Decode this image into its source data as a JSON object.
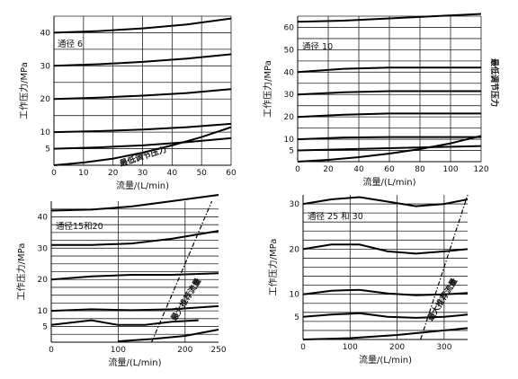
{
  "chart_data": [
    {
      "type": "line",
      "panel_label": "通径 6",
      "xlabel": "流量/(L/min)",
      "ylabel": "工作压力/MPa",
      "xlim": [
        0,
        60
      ],
      "ylim": [
        0,
        45
      ],
      "xticks": [
        0,
        10,
        20,
        30,
        40,
        50,
        60
      ],
      "yticks": [
        5,
        10,
        20,
        30,
        40
      ],
      "grid_x": [
        0,
        10,
        20,
        30,
        40,
        50,
        60
      ],
      "grid_y": [
        5,
        10,
        15,
        20,
        25,
        30,
        35,
        40,
        45
      ],
      "series": [
        {
          "x": [
            0,
            15,
            30,
            45,
            60
          ],
          "y": [
            40,
            40.5,
            41.3,
            42.5,
            44.3
          ]
        },
        {
          "x": [
            0,
            15,
            30,
            45,
            60
          ],
          "y": [
            30,
            30.5,
            31.2,
            32.2,
            33.5
          ]
        },
        {
          "x": [
            0,
            15,
            30,
            45,
            60
          ],
          "y": [
            20,
            20.4,
            21,
            21.8,
            23
          ]
        },
        {
          "x": [
            0,
            15,
            30,
            45,
            60
          ],
          "y": [
            10,
            10.3,
            10.8,
            11.5,
            12.5
          ]
        },
        {
          "x": [
            0,
            15,
            30,
            45,
            60
          ],
          "y": [
            5,
            5.4,
            6,
            7,
            8.2
          ]
        }
      ],
      "limit_line": {
        "name": "最低调节压力",
        "x": [
          0,
          10,
          20,
          30,
          40,
          50,
          60
        ],
        "y": [
          0,
          0.8,
          2,
          3.8,
          6,
          8.5,
          11.5
        ]
      }
    },
    {
      "type": "line",
      "panel_label": "通径 10",
      "xlabel": "流量/(L/min)",
      "ylabel": "工作压力/MPa",
      "xlim": [
        0,
        120
      ],
      "ylim": [
        0,
        65
      ],
      "xticks": [
        0,
        20,
        40,
        60,
        80,
        100,
        120
      ],
      "yticks": [
        5,
        10,
        20,
        30,
        40,
        50,
        60
      ],
      "grid_x": [
        0,
        20,
        40,
        60,
        80,
        100,
        120
      ],
      "grid_y": [
        5,
        10,
        15,
        20,
        25,
        30,
        35,
        40,
        45,
        50,
        55,
        60,
        65
      ],
      "series": [
        {
          "x": [
            0,
            30,
            60,
            90,
            120
          ],
          "y": [
            62.5,
            63,
            64,
            65,
            66
          ]
        },
        {
          "x": [
            0,
            30,
            60,
            90,
            120
          ],
          "y": [
            40,
            41.5,
            42,
            42,
            42
          ]
        },
        {
          "x": [
            0,
            30,
            60,
            90,
            120
          ],
          "y": [
            30,
            31,
            31.5,
            31.5,
            31.5
          ]
        },
        {
          "x": [
            0,
            30,
            60,
            90,
            120
          ],
          "y": [
            20,
            21,
            21.5,
            21.5,
            21.5
          ]
        },
        {
          "x": [
            0,
            30,
            60,
            90,
            120
          ],
          "y": [
            10,
            10.8,
            11,
            11,
            11
          ]
        },
        {
          "x": [
            0,
            30,
            60,
            90,
            120
          ],
          "y": [
            5,
            5.5,
            6,
            6.5,
            7
          ]
        }
      ],
      "limit_line": {
        "name": "最低调节压力",
        "x": [
          0,
          20,
          40,
          60,
          80,
          100,
          120
        ],
        "y": [
          0,
          0.8,
          2,
          3.6,
          5.6,
          8.2,
          11.5
        ]
      }
    },
    {
      "type": "line",
      "panel_label": "通径15和20",
      "xlabel": "流量/(L/min)",
      "ylabel": "工作压力/MPa",
      "xlim": [
        0,
        250
      ],
      "ylim": [
        0,
        45
      ],
      "xticks": [
        0,
        100,
        200,
        250
      ],
      "yticks": [
        5,
        10,
        20,
        30,
        40
      ],
      "grid_x": [
        0,
        100,
        200
      ],
      "grid_y": [
        2.5,
        5,
        7.5,
        10,
        12.5,
        15,
        17.5,
        20,
        22.5,
        25,
        27.5,
        30,
        32.5,
        35,
        37.5,
        40,
        42.5
      ],
      "series": [
        {
          "x": [
            0,
            60,
            120,
            180,
            250
          ],
          "y": [
            42,
            42.3,
            43.3,
            45,
            47
          ]
        },
        {
          "x": [
            0,
            60,
            120,
            180,
            250
          ],
          "y": [
            31,
            31,
            31.5,
            33,
            35.5
          ]
        },
        {
          "x": [
            0,
            60,
            120,
            180,
            250
          ],
          "y": [
            20,
            21,
            21.5,
            21.5,
            22
          ]
        },
        {
          "x": [
            0,
            60,
            120,
            180,
            250
          ],
          "y": [
            10,
            10.5,
            10.2,
            10.5,
            11.5
          ]
        },
        {
          "x": [
            0,
            60,
            100,
            140,
            180,
            220
          ],
          "y": [
            5.5,
            7,
            5.5,
            5.5,
            6.5,
            7
          ]
        }
      ],
      "limit_line": {
        "x": [
          100,
          150,
          200,
          250
        ],
        "y": [
          0.3,
          1,
          2,
          4
        ]
      },
      "boundary": {
        "name": "最大推荐流量",
        "x": [
          150,
          240
        ],
        "y": [
          0,
          45
        ]
      }
    },
    {
      "type": "line",
      "panel_label": "通径 25 和 30",
      "xlabel": "流量/(L/min)",
      "ylabel": "工作压力/MPa",
      "xlim": [
        0,
        350
      ],
      "ylim": [
        0,
        32
      ],
      "xticks": [
        0,
        100,
        200,
        300
      ],
      "yticks": [
        5,
        10,
        20,
        30
      ],
      "grid_x": [
        0,
        100,
        200,
        300
      ],
      "grid_y": [
        2,
        4,
        6,
        8,
        10,
        12,
        14,
        16,
        18,
        20,
        22,
        24,
        26,
        28,
        30
      ],
      "series": [
        {
          "x": [
            0,
            60,
            120,
            180,
            240,
            300,
            350
          ],
          "y": [
            30,
            31,
            31.5,
            30.5,
            29.5,
            30,
            31
          ]
        },
        {
          "x": [
            0,
            60,
            120,
            180,
            240,
            300,
            350
          ],
          "y": [
            20,
            21,
            21,
            19.5,
            19,
            19.5,
            20
          ]
        },
        {
          "x": [
            0,
            60,
            120,
            180,
            240,
            300,
            350
          ],
          "y": [
            10,
            10.8,
            11,
            10.2,
            9.8,
            10,
            10.3
          ]
        },
        {
          "x": [
            0,
            60,
            120,
            180,
            240,
            300,
            350
          ],
          "y": [
            5,
            5.5,
            5.8,
            5,
            4.8,
            5,
            5.5
          ]
        }
      ],
      "limit_line": {
        "x": [
          0,
          100,
          200,
          300,
          350
        ],
        "y": [
          0,
          0.3,
          1,
          2,
          2.5
        ]
      },
      "boundary": {
        "name": "最大推荐流量",
        "x": [
          250,
          350
        ],
        "y": [
          0,
          32
        ]
      }
    }
  ]
}
